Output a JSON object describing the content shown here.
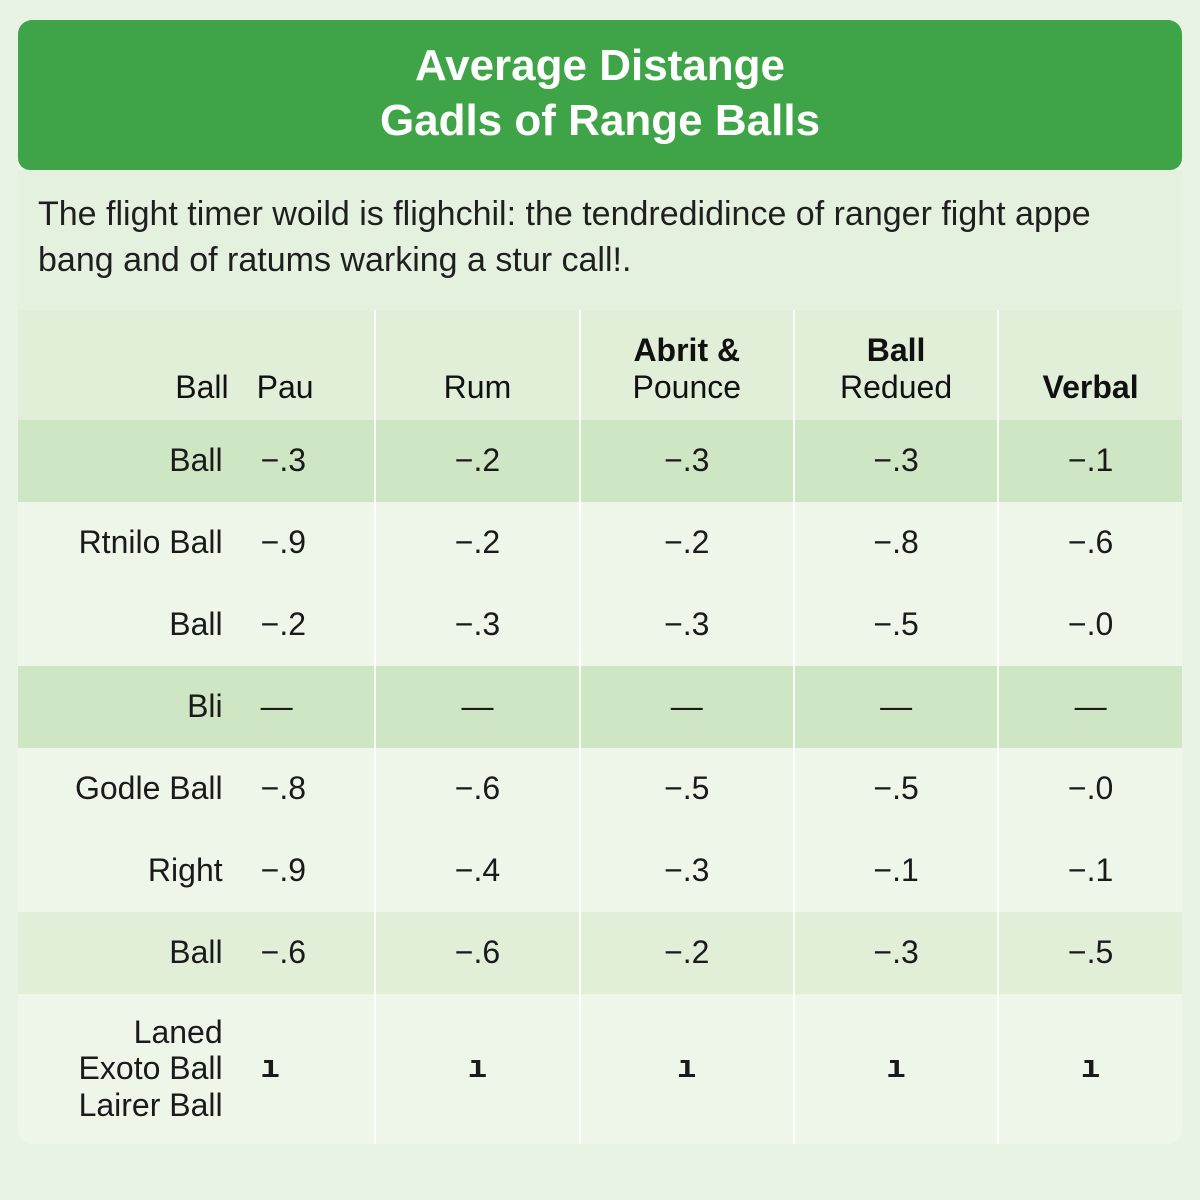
{
  "colors": {
    "header_bg": "#3fa447",
    "header_text": "#ffffff",
    "card_bg": "#eaf4e5",
    "subtitle_bg": "#e5f1df",
    "row_light": "#eef6ea",
    "row_mid": "#e1efd9",
    "row_dark": "#cfe6c4",
    "text": "#1a1a1a",
    "col_divider": "rgba(255,255,255,0.85)"
  },
  "fonts": {
    "title_size": 44,
    "subtitle_size": 34,
    "header_size": 32,
    "cell_size": 32,
    "label_size": 32
  },
  "title": {
    "line1": "Average Distange",
    "line2": "Gadls of Range Balls"
  },
  "subtitle": "The flight timer woild is flighchil: the tendredidince of ranger fight appe bang and of ratums warking a stur call!.",
  "columns": {
    "label": "Ball",
    "pau": "Pau",
    "rum": "Rum",
    "ap_top": "Abrit &",
    "ap_bot": "Pounce",
    "br_top": "Ball",
    "br_bot": "Redued",
    "vb": "Verbal"
  },
  "rows": [
    {
      "label": "Ball",
      "shade": "dark",
      "cells": [
        "−.3",
        "−.2",
        "−.3",
        "−.3",
        "−.1"
      ]
    },
    {
      "label": "Rtnilo Ball",
      "shade": "light",
      "cells": [
        "−.9",
        "−.2",
        "−.2",
        "−.8",
        "−.6"
      ]
    },
    {
      "label": "Ball",
      "shade": "light",
      "cells": [
        "−.2",
        "−.3",
        "−.3",
        "−.5",
        "−.0"
      ]
    },
    {
      "label": "Bli",
      "shade": "dark",
      "cells": [
        "—",
        "—",
        "—",
        "—",
        "—"
      ],
      "dash": true
    },
    {
      "label": "Godle Ball",
      "shade": "light",
      "cells": [
        "−.8",
        "−.6",
        "−.5",
        "−.5",
        "−.0"
      ]
    },
    {
      "label": "Right",
      "shade": "light",
      "cells": [
        "−.9",
        "−.4",
        "−.3",
        "−.1",
        "−.1"
      ]
    },
    {
      "label": "Ball",
      "shade": "mid",
      "cells": [
        "−.6",
        "−.6",
        "−.2",
        "−.3",
        "−.5"
      ]
    },
    {
      "label_multi": [
        "Laned",
        "Exoto Ball",
        "Lairer Ball"
      ],
      "shade": "light",
      "height": 150,
      "cells": [
        "ı",
        "ı",
        "ı",
        "ı",
        "ı"
      ],
      "tick": true
    }
  ]
}
